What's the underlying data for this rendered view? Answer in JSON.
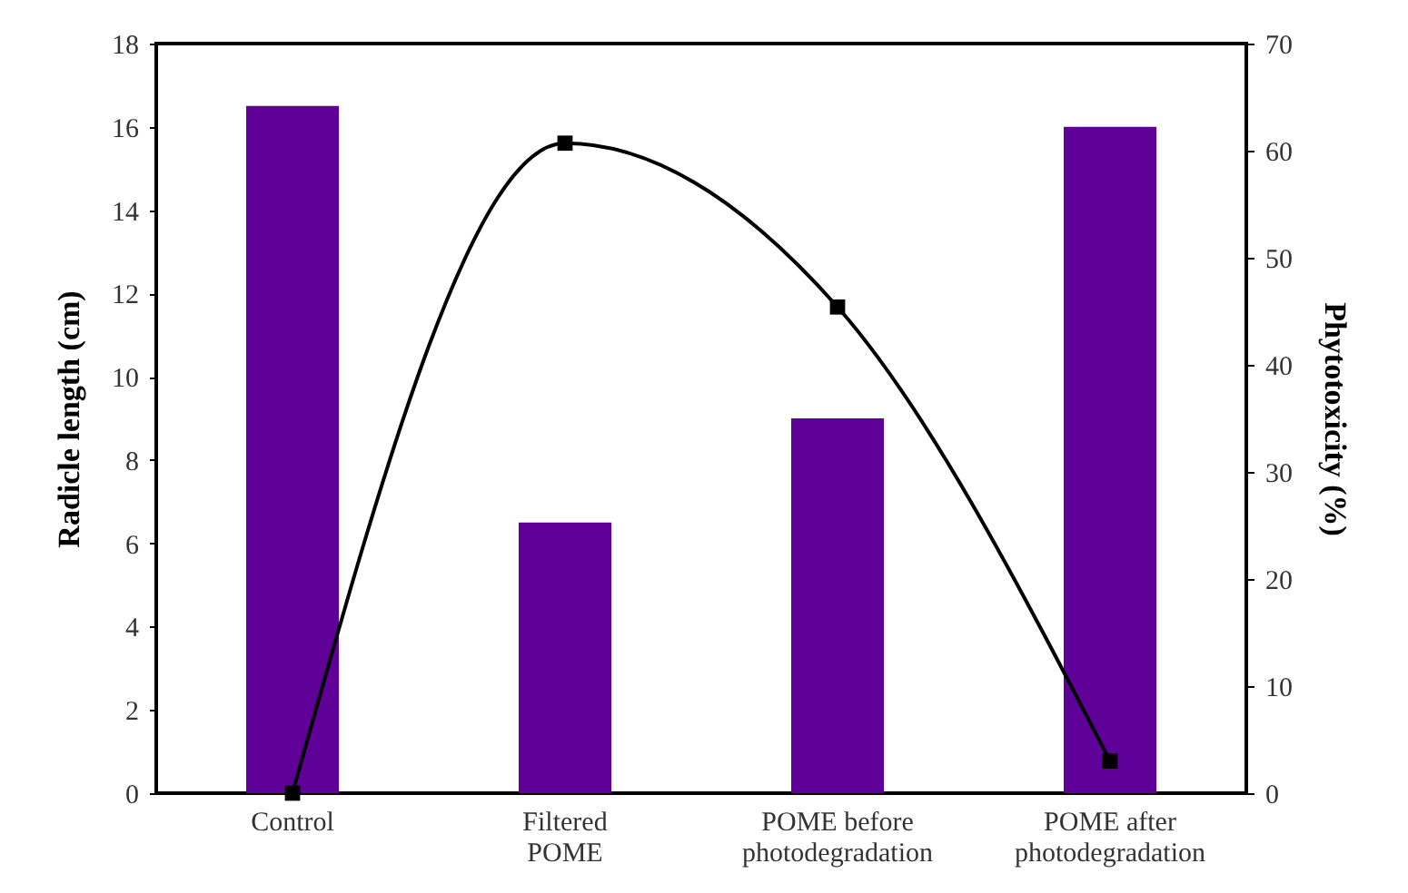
{
  "chart_data": {
    "type": "bar",
    "xlabel": null,
    "ylabel": "Radicle length (cm)",
    "y2label": "Phytotoxicity (%)",
    "categories": [
      "Control",
      "Filtered POME",
      "POME before photodegradation",
      "POME after photodegradation"
    ],
    "series": [
      {
        "color": "#5f0099",
        "values": [
          16.5,
          6.5,
          9.0,
          16.0
        ]
      },
      {
        "type": "line",
        "axis": "y2",
        "color": "#000000",
        "marker": "square",
        "values": [
          0,
          60.7,
          45.4,
          3
        ]
      }
    ],
    "ylim": [
      0,
      18
    ],
    "yticks": [
      0,
      2,
      4,
      6,
      8,
      10,
      12,
      14,
      16,
      18
    ],
    "y2lim": [
      0,
      70
    ],
    "y2ticks": [
      0,
      10,
      20,
      30,
      40,
      50,
      60,
      70
    ],
    "grid": false
  }
}
